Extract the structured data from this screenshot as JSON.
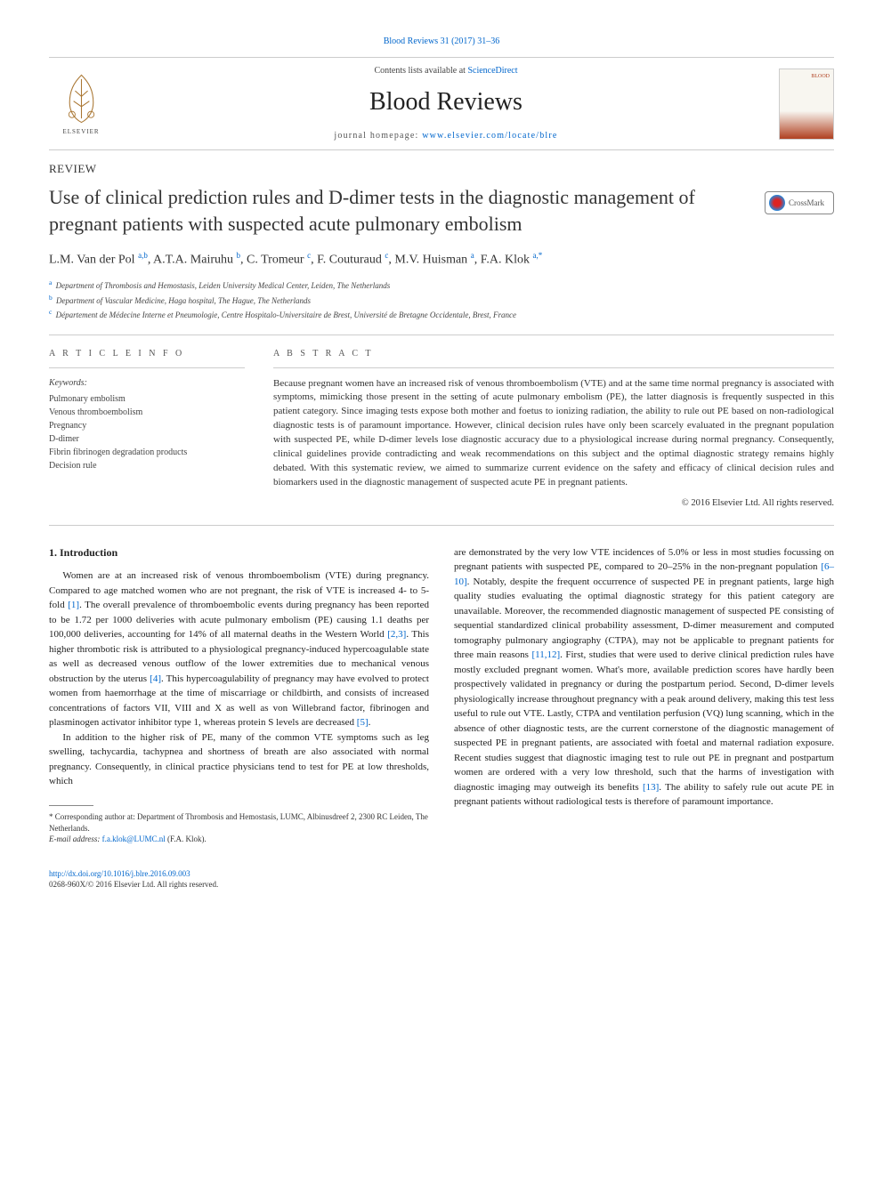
{
  "top_citation": "Blood Reviews 31 (2017) 31–36",
  "header": {
    "contents_prefix": "Contents lists available at ",
    "contents_link": "ScienceDirect",
    "journal_name": "Blood Reviews",
    "homepage_prefix": "journal homepage: ",
    "homepage_url": "www.elsevier.com/locate/blre",
    "publisher_name": "ELSEVIER",
    "cover_label": "BLOOD"
  },
  "article": {
    "type": "REVIEW",
    "title": "Use of clinical prediction rules and D-dimer tests in the diagnostic management of pregnant patients with suspected acute pulmonary embolism",
    "crossmark": "CrossMark",
    "authors_html": "L.M. Van der Pol <sup>a,b</sup>, A.T.A. Mairuhu <sup>b</sup>, C. Tromeur <sup>c</sup>, F. Couturaud <sup>c</sup>, M.V. Huisman <sup>a</sup>, F.A. Klok <sup>a,*</sup>",
    "affiliations": [
      {
        "key": "a",
        "text": "Department of Thrombosis and Hemostasis, Leiden University Medical Center, Leiden, The Netherlands"
      },
      {
        "key": "b",
        "text": "Department of Vascular Medicine, Haga hospital, The Hague, The Netherlands"
      },
      {
        "key": "c",
        "text": "Département de Médecine Interne et Pneumologie, Centre Hospitalo-Universitaire de Brest, Université de Bretagne Occidentale, Brest, France"
      }
    ]
  },
  "info": {
    "heading": "A R T I C L E   I N F O",
    "keywords_label": "Keywords:",
    "keywords": [
      "Pulmonary embolism",
      "Venous thromboembolism",
      "Pregnancy",
      "D-dimer",
      "Fibrin fibrinogen degradation products",
      "Decision rule"
    ]
  },
  "abstract": {
    "heading": "A B S T R A C T",
    "text": "Because pregnant women have an increased risk of venous thromboembolism (VTE) and at the same time normal pregnancy is associated with symptoms, mimicking those present in the setting of acute pulmonary embolism (PE), the latter diagnosis is frequently suspected in this patient category. Since imaging tests expose both mother and foetus to ionizing radiation, the ability to rule out PE based on non-radiological diagnostic tests is of paramount importance. However, clinical decision rules have only been scarcely evaluated in the pregnant population with suspected PE, while D-dimer levels lose diagnostic accuracy due to a physiological increase during normal pregnancy. Consequently, clinical guidelines provide contradicting and weak recommendations on this subject and the optimal diagnostic strategy remains highly debated. With this systematic review, we aimed to summarize current evidence on the safety and efficacy of clinical decision rules and biomarkers used in the diagnostic management of suspected acute PE in pregnant patients.",
    "copyright": "© 2016 Elsevier Ltd. All rights reserved."
  },
  "body": {
    "section1_heading": "1. Introduction",
    "left_paragraphs": [
      "Women are at an increased risk of venous thromboembolism (VTE) during pregnancy. Compared to age matched women who are not pregnant, the risk of VTE is increased 4- to 5-fold <a class=\"ref-link\" data-name=\"ref-link\" data-interactable=\"true\">[1]</a>. The overall prevalence of thromboembolic events during pregnancy has been reported to be 1.72 per 1000 deliveries with acute pulmonary embolism (PE) causing 1.1 deaths per 100,000 deliveries, accounting for 14% of all maternal deaths in the Western World <a class=\"ref-link\" data-name=\"ref-link\" data-interactable=\"true\">[2,3]</a>. This higher thrombotic risk is attributed to a physiological pregnancy-induced hypercoagulable state as well as decreased venous outflow of the lower extremities due to mechanical venous obstruction by the uterus <a class=\"ref-link\" data-name=\"ref-link\" data-interactable=\"true\">[4]</a>. This hypercoagulability of pregnancy may have evolved to protect women from haemorrhage at the time of miscarriage or childbirth, and consists of increased concentrations of factors VII, VIII and X as well as von Willebrand factor, fibrinogen and plasminogen activator inhibitor type 1, whereas protein S levels are decreased <a class=\"ref-link\" data-name=\"ref-link\" data-interactable=\"true\">[5]</a>.",
      "In addition to the higher risk of PE, many of the common VTE symptoms such as leg swelling, tachycardia, tachypnea and shortness of breath are also associated with normal pregnancy. Consequently, in clinical practice physicians tend to test for PE at low thresholds, which"
    ],
    "right_paragraphs": [
      "are demonstrated by the very low VTE incidences of 5.0% or less in most studies focussing on pregnant patients with suspected PE, compared to 20–25% in the non-pregnant population <a class=\"ref-link\" data-name=\"ref-link\" data-interactable=\"true\">[6–10]</a>. Notably, despite the frequent occurrence of suspected PE in pregnant patients, large high quality studies evaluating the optimal diagnostic strategy for this patient category are unavailable. Moreover, the recommended diagnostic management of suspected PE consisting of sequential standardized clinical probability assessment, D-dimer measurement and computed tomography pulmonary angiography (CTPA), may not be applicable to pregnant patients for three main reasons <a class=\"ref-link\" data-name=\"ref-link\" data-interactable=\"true\">[11,12]</a>. First, studies that were used to derive clinical prediction rules have mostly excluded pregnant women. What's more, available prediction scores have hardly been prospectively validated in pregnancy or during the postpartum period. Second, D-dimer levels physiologically increase throughout pregnancy with a peak around delivery, making this test less useful to rule out VTE. Lastly, CTPA and ventilation perfusion (VQ) lung scanning, which in the absence of other diagnostic tests, are the current cornerstone of the diagnostic management of suspected PE in pregnant patients, are associated with foetal and maternal radiation exposure. Recent studies suggest that diagnostic imaging test to rule out PE in pregnant and postpartum women are ordered with a very low threshold, such that the harms of investigation with diagnostic imaging may outweigh its benefits <a class=\"ref-link\" data-name=\"ref-link\" data-interactable=\"true\">[13]</a>. The ability to safely rule out acute PE in pregnant patients without radiological tests is therefore of paramount importance."
    ]
  },
  "footnote": {
    "corresponding": "* Corresponding author at: Department of Thrombosis and Hemostasis, LUMC, Albinusdreef 2, 2300 RC Leiden, The Netherlands.",
    "email_label": "E-mail address: ",
    "email": "f.a.klok@LUMC.nl",
    "email_name": " (F.A. Klok)."
  },
  "footer": {
    "doi": "http://dx.doi.org/10.1016/j.blre.2016.09.003",
    "issn_line": "0268-960X/© 2016 Elsevier Ltd. All rights reserved."
  },
  "colors": {
    "link": "#0066cc",
    "text": "#222222",
    "muted": "#555555",
    "border": "#cccccc"
  }
}
